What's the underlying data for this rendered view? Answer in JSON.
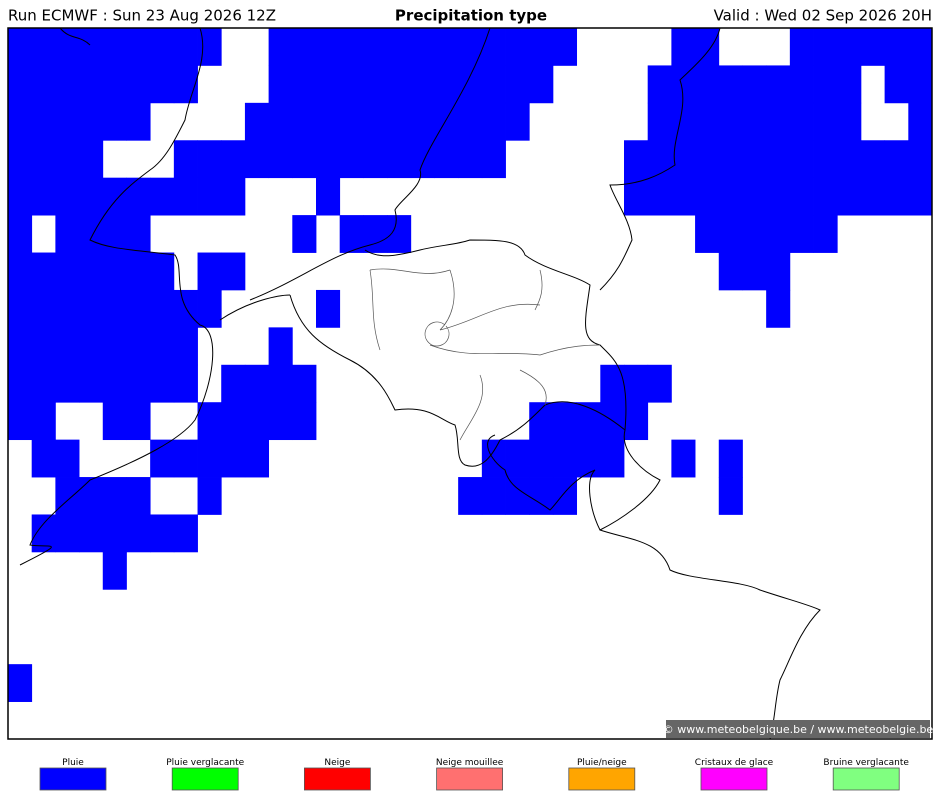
{
  "header": {
    "run": "Run ECMWF : Sun 23 Aug 2026 12Z",
    "title": "Precipitation type",
    "valid": "Valid : Wed 02 Sep 2026 20H"
  },
  "map": {
    "credit": "© www.meteobelgique.be / www.meteobelgie.be"
  },
  "legend": {
    "items": [
      {
        "label": "Pluie",
        "color": "#0000ff"
      },
      {
        "label": "Pluie verglacante",
        "color": "#00ff00"
      },
      {
        "label": "Neige",
        "color": "#ff0000"
      },
      {
        "label": "Neige mouillee",
        "color": "#ff7070"
      },
      {
        "label": "Pluie/neige",
        "color": "#ffa500"
      },
      {
        "label": "Cristaux de glace",
        "color": "#ff00ff"
      },
      {
        "label": "Bruine verglacante",
        "color": "#80ff80"
      }
    ]
  }
}
